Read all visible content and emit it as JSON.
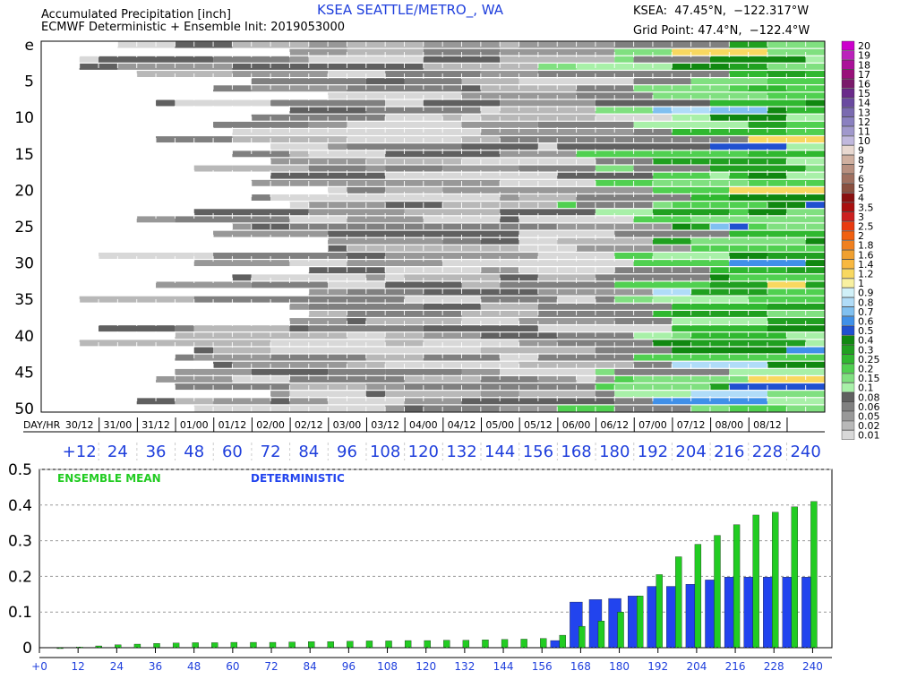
{
  "header": {
    "title_line1": "Accumulated Precipitation [inch]",
    "title_line2": "ECMWF Deterministic + Ensemble Init: 2019053000",
    "station": "KSEA SEATTLE/METRO_, WA",
    "station_coords": "KSEA:  47.45°N,  −122.317°W",
    "grid_point": "Grid Point: 47.4°N,  −122.4°W"
  },
  "colors": {
    "ensemble": "#22cc22",
    "deterministic": "#2244ee",
    "axis_blue": "#1f3fdc"
  },
  "chart_data": [
    {
      "type": "heatmap",
      "title": "Accumulated Precipitation [inch]",
      "ylabel": "",
      "xlabel": "DAY/HR",
      "y_tick_labels": [
        "e",
        "5",
        "10",
        "15",
        "20",
        "25",
        "30",
        "35",
        "40",
        "45",
        "50"
      ],
      "member_count": 51,
      "day_hr_labels": [
        "30/12",
        "31/00",
        "31/12",
        "01/00",
        "01/12",
        "02/00",
        "02/12",
        "03/00",
        "03/12",
        "04/00",
        "04/12",
        "05/00",
        "05/12",
        "06/00",
        "06/12",
        "07/00",
        "07/12",
        "08/00",
        "08/12"
      ],
      "forecast_hour_labels": [
        "+12",
        "24",
        "36",
        "48",
        "60",
        "72",
        "84",
        "96",
        "108",
        "120",
        "132",
        "144",
        "156",
        "168",
        "180",
        "192",
        "204",
        "216",
        "228",
        "240"
      ],
      "scale_labels": [
        "20",
        "19",
        "18",
        "17",
        "16",
        "15",
        "14",
        "13",
        "12",
        "11",
        "10",
        "9",
        "8",
        "7",
        "6",
        "5",
        "4",
        "3.5",
        "3",
        "2.5",
        "2",
        "1.8",
        "1.6",
        "1.4",
        "1.2",
        "1",
        "0.9",
        "0.8",
        "0.7",
        "0.6",
        "0.5",
        "0.4",
        "0.3",
        "0.25",
        "0.2",
        "0.15",
        "0.1",
        "0.08",
        "0.06",
        "0.05",
        "0.02",
        "0.01"
      ],
      "scale_colors": [
        "#cc00cc",
        "#bb22bb",
        "#aa1199",
        "#99117a",
        "#7a1a6a",
        "#6a2a8a",
        "#6a4aa0",
        "#7a6ab0",
        "#8a80c0",
        "#a098cc",
        "#c0b8dd",
        "#e8d8d0",
        "#d0b0a0",
        "#b89080",
        "#a07060",
        "#8a5040",
        "#8a1010",
        "#aa1010",
        "#cc2020",
        "#e83a10",
        "#f06010",
        "#f08020",
        "#f0a030",
        "#f8b840",
        "#f8d860",
        "#f8f0a0",
        "#d0f0f8",
        "#b0dcf8",
        "#80c0f0",
        "#4090e8",
        "#2050d0",
        "#108810",
        "#20a020",
        "#30b830",
        "#50d050",
        "#80e080",
        "#a8f0a8",
        "#606060",
        "#808080",
        "#989898",
        "#b8b8b8",
        "#d8d8d8"
      ]
    },
    {
      "type": "bar",
      "ylim": [
        0,
        0.5
      ],
      "y_ticks": [
        "0",
        "0.1",
        "0.2",
        "0.3",
        "0.4",
        "0.5"
      ],
      "x_tick_labels": [
        "+0",
        "12",
        "24",
        "36",
        "48",
        "60",
        "72",
        "84",
        "96",
        "108",
        "120",
        "132",
        "144",
        "156",
        "168",
        "180",
        "192",
        "204",
        "216",
        "228",
        "240"
      ],
      "x_step_hours": 6,
      "x": [
        6,
        12,
        18,
        24,
        30,
        36,
        42,
        48,
        54,
        60,
        66,
        72,
        78,
        84,
        90,
        96,
        102,
        108,
        114,
        120,
        126,
        132,
        138,
        144,
        150,
        156,
        162,
        168,
        174,
        180,
        186,
        192,
        198,
        204,
        210,
        216,
        222,
        228,
        234,
        240
      ],
      "series": [
        {
          "name": "ENSEMBLE MEAN",
          "values": [
            0.0,
            0.002,
            0.005,
            0.008,
            0.01,
            0.012,
            0.013,
            0.014,
            0.014,
            0.015,
            0.015,
            0.015,
            0.016,
            0.017,
            0.017,
            0.018,
            0.019,
            0.019,
            0.02,
            0.02,
            0.021,
            0.021,
            0.022,
            0.023,
            0.024,
            0.026,
            0.035,
            0.06,
            0.075,
            0.1,
            0.145,
            0.205,
            0.255,
            0.29,
            0.315,
            0.345,
            0.372,
            0.38,
            0.395,
            0.41
          ]
        },
        {
          "name": "DETERMINISTIC",
          "values": [
            0.0,
            0.0,
            0.0,
            0.0,
            0.0,
            0.0,
            0.0,
            0.0,
            0.0,
            0.0,
            0.0,
            0.0,
            0.0,
            0.0,
            0.0,
            0.0,
            0.0,
            0.0,
            0.0,
            0.0,
            0.0,
            0.0,
            0.0,
            0.0,
            0.0,
            0.0,
            0.02,
            0.128,
            0.135,
            0.138,
            0.145,
            0.172,
            0.172,
            0.178,
            0.19,
            0.198,
            0.198,
            0.198,
            0.198,
            0.198
          ]
        }
      ]
    }
  ]
}
